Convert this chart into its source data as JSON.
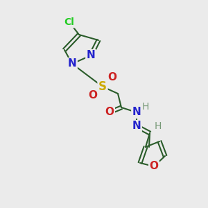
{
  "background_color": "#ebebeb",
  "bond_color": "#2a5c2a",
  "bond_width": 1.5,
  "figsize": [
    3.0,
    3.0
  ],
  "dpi": 100,
  "xlim": [
    0,
    300
  ],
  "ylim": [
    0,
    300
  ]
}
